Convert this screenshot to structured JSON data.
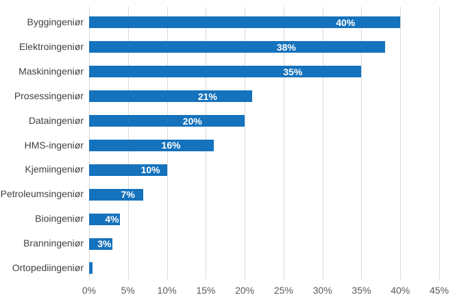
{
  "chart_data": {
    "type": "bar",
    "orientation": "horizontal",
    "title": "",
    "xlabel": "",
    "ylabel": "",
    "categories": [
      "Byggingeniør",
      "Elektroingeniør",
      "Maskiningeniør",
      "Prosessingeniør",
      "Dataingeniør",
      "HMS-ingeniør",
      "Kjemiingeniør",
      "Petroleumsingeniør",
      "Bioingeniør",
      "Branningeniør",
      "Ortopediingeniør"
    ],
    "values": [
      40,
      38,
      35,
      21,
      20,
      16,
      10,
      7,
      4,
      3,
      0.4
    ],
    "value_labels": [
      "40%",
      "38%",
      "35%",
      "21%",
      "20%",
      "16%",
      "10%",
      "7%",
      "4%",
      "3%",
      ""
    ],
    "xlim": [
      0,
      45
    ],
    "x_ticks": [
      "0%",
      "5%",
      "10%",
      "15%",
      "20%",
      "25%",
      "30%",
      "35%",
      "40%",
      "45%"
    ],
    "grid": "vertical-only",
    "legend": "none",
    "colors": {
      "bar": "#1572bc",
      "value_label": "#ffffff",
      "category_label": "#404040",
      "tick_label": "#595959",
      "gridline": "#d9d9d9",
      "background": "#ffffff"
    }
  }
}
